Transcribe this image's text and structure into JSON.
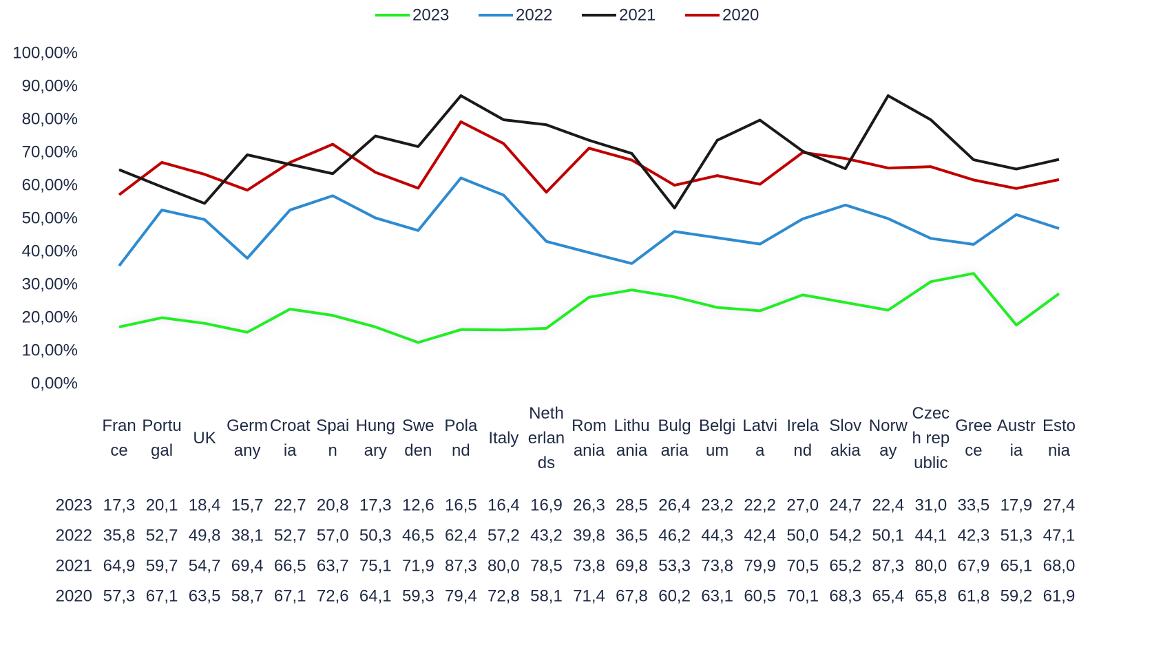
{
  "chart_data": {
    "type": "line",
    "categories": [
      "France",
      "Portugal",
      "UK",
      "Germany",
      "Croatia",
      "Spain",
      "Hungary",
      "Sweden",
      "Poland",
      "Italy",
      "Netherlands",
      "Romania",
      "Lithuania",
      "Bulgaria",
      "Belgium",
      "Latvia",
      "Ireland",
      "Slovakia",
      "Norway",
      "Czech republic",
      "Greece",
      "Austria",
      "Estonia"
    ],
    "series": [
      {
        "name": "2023",
        "color": "#22ee22",
        "values": [
          17.3,
          20.1,
          18.4,
          15.7,
          22.7,
          20.8,
          17.3,
          12.6,
          16.5,
          16.4,
          16.9,
          26.3,
          28.5,
          26.4,
          23.2,
          22.2,
          27.0,
          24.7,
          22.4,
          31.0,
          33.5,
          17.9,
          27.4
        ],
        "value_labels": [
          "17,3",
          "20,1",
          "18,4",
          "15,7",
          "22,7",
          "20,8",
          "17,3",
          "12,6",
          "16,5",
          "16,4",
          "16,9",
          "26,3",
          "28,5",
          "26,4",
          "23,2",
          "22,2",
          "27,0",
          "24,7",
          "22,4",
          "31,0",
          "33,5",
          "17,9",
          "27,4"
        ]
      },
      {
        "name": "2022",
        "color": "#2e8bd0",
        "values": [
          35.8,
          52.7,
          49.8,
          38.1,
          52.7,
          57.0,
          50.3,
          46.5,
          62.4,
          57.2,
          43.2,
          39.8,
          36.5,
          46.2,
          44.3,
          42.4,
          50.0,
          54.2,
          50.1,
          44.1,
          42.3,
          51.3,
          47.1
        ],
        "value_labels": [
          "35,8",
          "52,7",
          "49,8",
          "38,1",
          "52,7",
          "57,0",
          "50,3",
          "46,5",
          "62,4",
          "57,2",
          "43,2",
          "39,8",
          "36,5",
          "46,2",
          "44,3",
          "42,4",
          "50,0",
          "54,2",
          "50,1",
          "44,1",
          "42,3",
          "51,3",
          "47,1"
        ]
      },
      {
        "name": "2021",
        "color": "#1a1a1a",
        "values": [
          64.9,
          59.7,
          54.7,
          69.4,
          66.5,
          63.7,
          75.1,
          71.9,
          87.3,
          80.0,
          78.5,
          73.8,
          69.8,
          53.3,
          73.8,
          79.9,
          70.5,
          65.2,
          87.3,
          80.0,
          67.9,
          65.1,
          68.0
        ],
        "value_labels": [
          "64,9",
          "59,7",
          "54,7",
          "69,4",
          "66,5",
          "63,7",
          "75,1",
          "71,9",
          "87,3",
          "80,0",
          "78,5",
          "73,8",
          "69,8",
          "53,3",
          "73,8",
          "79,9",
          "70,5",
          "65,2",
          "87,3",
          "80,0",
          "67,9",
          "65,1",
          "68,0"
        ]
      },
      {
        "name": "2020",
        "color": "#c00000",
        "values": [
          57.3,
          67.1,
          63.5,
          58.7,
          67.1,
          72.6,
          64.1,
          59.3,
          79.4,
          72.8,
          58.1,
          71.4,
          67.8,
          60.2,
          63.1,
          60.5,
          70.1,
          68.3,
          65.4,
          65.8,
          61.8,
          59.2,
          61.9
        ],
        "value_labels": [
          "57,3",
          "67,1",
          "63,5",
          "58,7",
          "67,1",
          "72,6",
          "64,1",
          "59,3",
          "79,4",
          "72,8",
          "58,1",
          "71,4",
          "67,8",
          "60,2",
          "63,1",
          "60,5",
          "70,1",
          "68,3",
          "65,4",
          "65,8",
          "61,8",
          "59,2",
          "61,9"
        ]
      }
    ],
    "ylim": [
      0,
      100
    ],
    "yticks": [
      {
        "value": 0,
        "label": "0,00%"
      },
      {
        "value": 10,
        "label": "10,00%"
      },
      {
        "value": 20,
        "label": "20,00%"
      },
      {
        "value": 30,
        "label": "30,00%"
      },
      {
        "value": 40,
        "label": "40,00%"
      },
      {
        "value": 50,
        "label": "50,00%"
      },
      {
        "value": 60,
        "label": "60,00%"
      },
      {
        "value": 70,
        "label": "70,00%"
      },
      {
        "value": 80,
        "label": "80,00%"
      },
      {
        "value": 90,
        "label": "90,00%"
      },
      {
        "value": 100,
        "label": "100,00%"
      }
    ],
    "grid": false,
    "legend": "top"
  }
}
